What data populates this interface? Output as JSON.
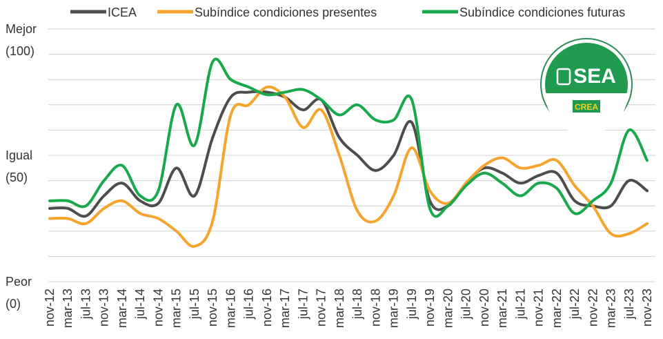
{
  "chart_data": {
    "type": "line",
    "categories": [
      "nov-12",
      "mar-13",
      "jul-13",
      "nov-13",
      "mar-14",
      "jul-14",
      "nov-14",
      "mar-15",
      "jul-15",
      "nov-15",
      "mar-16",
      "jul-16",
      "nov-16",
      "mar-17",
      "jul-17",
      "nov-17",
      "mar-18",
      "jul-18",
      "nov-18",
      "mar-19",
      "jul-19",
      "nov-19",
      "mar-20",
      "jul-20",
      "nov-20",
      "mar-21",
      "jul-21",
      "nov-21",
      "mar-22",
      "jul-22",
      "nov-22",
      "mar-23",
      "jul-23",
      "nov-23"
    ],
    "series": [
      {
        "name": "ICEA",
        "color": "#4d4d4d",
        "values": [
          29,
          29,
          26,
          34,
          39,
          32,
          31,
          45,
          34,
          57,
          73,
          75,
          75,
          73,
          68,
          72,
          57,
          50,
          44,
          50,
          63,
          32,
          30,
          39,
          45,
          43,
          39,
          42,
          43,
          32,
          30,
          30,
          40,
          36
        ]
      },
      {
        "name": "Subíndice condiciones presentes",
        "color": "#f5a42e",
        "values": [
          25,
          25,
          23,
          29,
          32,
          27,
          25,
          20,
          14,
          24,
          66,
          70,
          77,
          73,
          61,
          68,
          50,
          28,
          24,
          34,
          53,
          36,
          31,
          39,
          46,
          49,
          45,
          46,
          48,
          38,
          30,
          19,
          19,
          23
        ]
      },
      {
        "name": "Subíndice condiciones futuras",
        "color": "#19a84a",
        "values": [
          32,
          32,
          30,
          40,
          46,
          34,
          36,
          70,
          54,
          87,
          80,
          77,
          74,
          75,
          76,
          72,
          66,
          70,
          64,
          64,
          72,
          29,
          30,
          38,
          43,
          39,
          34,
          39,
          37,
          27,
          32,
          39,
          60,
          48
        ]
      }
    ],
    "ylim": [
      0,
      100
    ],
    "yticks": [
      0,
      10,
      20,
      30,
      40,
      50,
      60,
      70,
      80,
      90,
      100
    ],
    "grid": true,
    "y_annotations": [
      {
        "value": 100,
        "label": "Mejor",
        "sublabel": "(100)"
      },
      {
        "value": 50,
        "label": "Igual",
        "sublabel": "(50)"
      },
      {
        "value": 0,
        "label": "Peor",
        "sublabel": "(0)"
      }
    ],
    "logo": {
      "text": "SEA",
      "subtext": "CREA"
    }
  }
}
